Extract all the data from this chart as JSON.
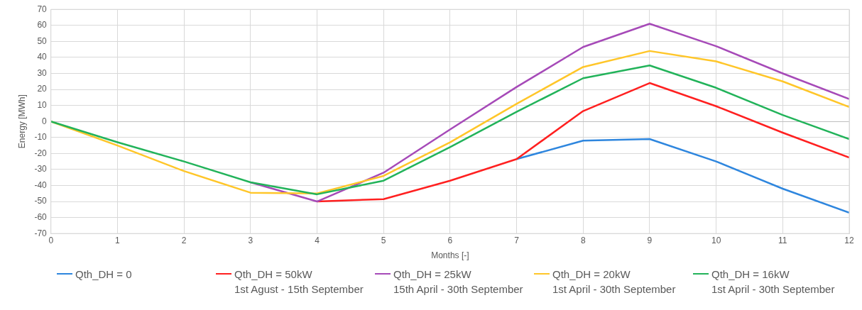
{
  "chart_data": {
    "type": "line",
    "xlabel": "Months [-]",
    "ylabel": "Energy [MWh]",
    "x": [
      0,
      1,
      2,
      3,
      4,
      5,
      6,
      7,
      8,
      9,
      10,
      11,
      12
    ],
    "xlim": [
      0,
      12
    ],
    "xticks": [
      0,
      1,
      2,
      3,
      4,
      5,
      6,
      7,
      8,
      9,
      10,
      11,
      12
    ],
    "ylim": [
      -70,
      70
    ],
    "yticks": [
      -70,
      -60,
      -50,
      -40,
      -30,
      -20,
      -10,
      0,
      10,
      20,
      30,
      40,
      50,
      60,
      70
    ],
    "grid": true,
    "legend": "bottom",
    "marker": "none",
    "line_style": "solid",
    "series": [
      {
        "name": "Qth_DH = 0",
        "color": "#2e86de",
        "values": [
          null,
          null,
          null,
          null,
          null,
          null,
          null,
          -23.5,
          -12,
          -11,
          -25,
          -42,
          -57
        ]
      },
      {
        "name": "Qth_DH = 50kW\n1st Agust - 15th September",
        "color": "#ff2020",
        "values": [
          null,
          null,
          null,
          null,
          -50,
          -48.5,
          -37,
          -23.5,
          6.5,
          24,
          9.5,
          -7,
          -22.5
        ]
      },
      {
        "name": "Qth_DH = 25kW\n15th April - 30th September",
        "color": "#a64ab8",
        "values": [
          null,
          null,
          null,
          -38,
          -50,
          -32,
          -5,
          21.5,
          46.5,
          61,
          47,
          30,
          14
        ]
      },
      {
        "name": "Qth_DH = 20kW\n1st April - 30th September",
        "color": "#ffc629",
        "values": [
          0,
          -15,
          -31,
          -44.5,
          -45,
          -34,
          -13,
          11,
          34,
          44,
          37.5,
          25,
          9
        ]
      },
      {
        "name": "Qth_DH = 16kW\n1st April - 30th September",
        "color": "#22b35a",
        "values": [
          0,
          -13,
          -25,
          -38,
          -45.5,
          -37,
          -16,
          6,
          27,
          35,
          21,
          4,
          -11
        ]
      }
    ]
  }
}
